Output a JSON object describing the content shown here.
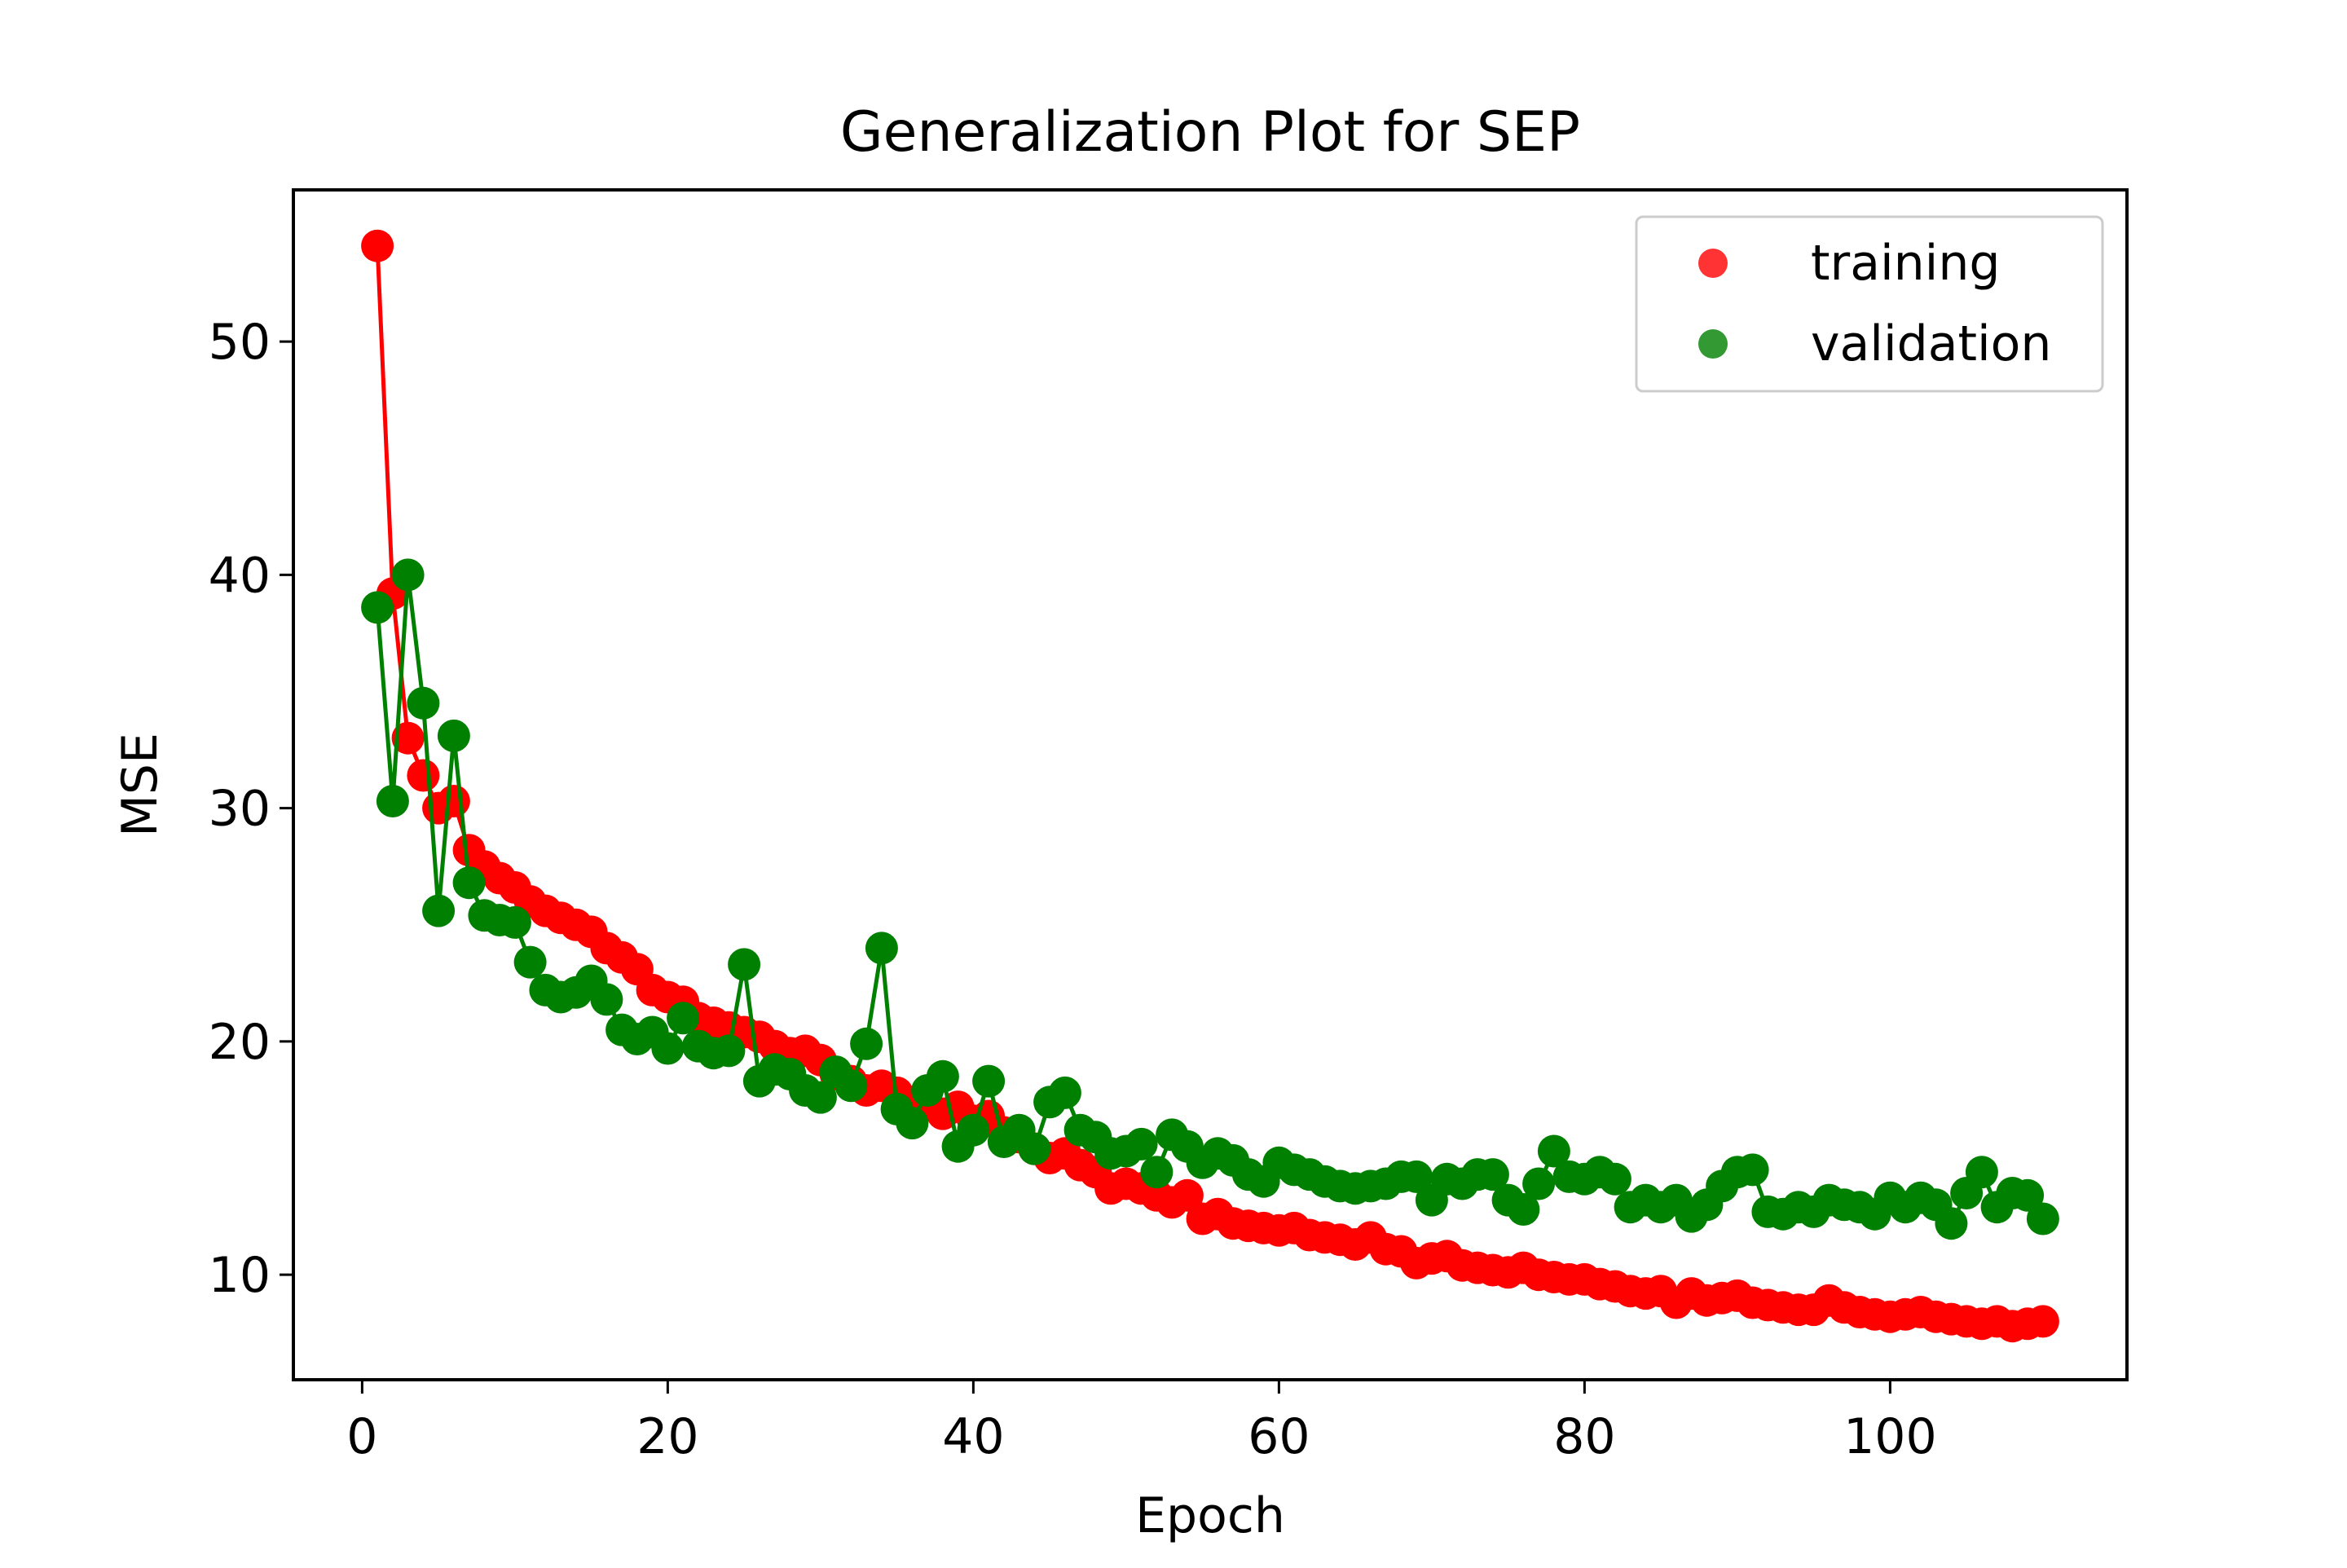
{
  "chart_data": {
    "type": "line",
    "title": "Generalization Plot for SEP",
    "xlabel": "Epoch",
    "ylabel": "MSE",
    "xlim": [
      -4.5,
      115.5
    ],
    "ylim": [
      5.5,
      56.5
    ],
    "xticks": [
      0,
      20,
      40,
      60,
      80,
      100
    ],
    "yticks": [
      10,
      20,
      30,
      40,
      50
    ],
    "grid": false,
    "legend_position": "top-right",
    "markers": "circle",
    "series": [
      {
        "name": "training",
        "color": "#ff0000",
        "x": [
          1,
          2,
          3,
          4,
          5,
          6,
          7,
          8,
          9,
          10,
          11,
          12,
          13,
          14,
          15,
          16,
          17,
          18,
          19,
          20,
          21,
          22,
          23,
          24,
          25,
          26,
          27,
          28,
          29,
          30,
          31,
          32,
          33,
          34,
          35,
          36,
          37,
          38,
          39,
          40,
          41,
          42,
          43,
          44,
          45,
          46,
          47,
          48,
          49,
          50,
          51,
          52,
          53,
          54,
          55,
          56,
          57,
          58,
          59,
          60,
          61,
          62,
          63,
          64,
          65,
          66,
          67,
          68,
          69,
          70,
          71,
          72,
          73,
          74,
          75,
          76,
          77,
          78,
          79,
          80,
          81,
          82,
          83,
          84,
          85,
          86,
          87,
          88,
          89,
          90,
          91,
          92,
          93,
          94,
          95,
          96,
          97,
          98,
          99,
          100,
          101,
          102,
          103,
          104,
          105,
          106,
          107,
          108,
          109,
          110
        ],
        "values": [
          54.1,
          39.2,
          33.0,
          31.4,
          30.0,
          30.3,
          28.2,
          27.5,
          27.0,
          26.6,
          26.0,
          25.6,
          25.3,
          25.0,
          24.7,
          24.0,
          23.6,
          23.1,
          22.2,
          21.9,
          21.7,
          21.0,
          20.8,
          20.6,
          20.4,
          20.2,
          19.8,
          19.5,
          19.6,
          19.2,
          18.6,
          18.3,
          17.9,
          18.1,
          17.8,
          17.4,
          17.3,
          16.9,
          17.2,
          16.6,
          16.8,
          16.1,
          15.9,
          15.4,
          15.0,
          15.2,
          14.7,
          14.4,
          13.7,
          13.9,
          13.7,
          13.4,
          13.1,
          13.4,
          12.4,
          12.6,
          12.2,
          12.1,
          12.0,
          11.9,
          12.0,
          11.7,
          11.6,
          11.5,
          11.3,
          11.6,
          11.1,
          11.0,
          10.5,
          10.7,
          10.8,
          10.4,
          10.3,
          10.2,
          10.1,
          10.3,
          10.0,
          9.9,
          9.8,
          9.8,
          9.6,
          9.5,
          9.3,
          9.2,
          9.3,
          8.8,
          9.2,
          8.9,
          9.0,
          9.1,
          8.8,
          8.7,
          8.6,
          8.5,
          8.5,
          8.9,
          8.6,
          8.4,
          8.3,
          8.2,
          8.3,
          8.4,
          8.2,
          8.1,
          8.0,
          7.9,
          8.0,
          7.8,
          7.9,
          8.0
        ]
      },
      {
        "name": "validation",
        "color": "#008000",
        "x": [
          1,
          2,
          3,
          4,
          5,
          6,
          7,
          8,
          9,
          10,
          11,
          12,
          13,
          14,
          15,
          16,
          17,
          18,
          19,
          20,
          21,
          22,
          23,
          24,
          25,
          26,
          27,
          28,
          29,
          30,
          31,
          32,
          33,
          34,
          35,
          36,
          37,
          38,
          39,
          40,
          41,
          42,
          43,
          44,
          45,
          46,
          47,
          48,
          49,
          50,
          51,
          52,
          53,
          54,
          55,
          56,
          57,
          58,
          59,
          60,
          61,
          62,
          63,
          64,
          65,
          66,
          67,
          68,
          69,
          70,
          71,
          72,
          73,
          74,
          75,
          76,
          77,
          78,
          79,
          80,
          81,
          82,
          83,
          84,
          85,
          86,
          87,
          88,
          89,
          90,
          91,
          92,
          93,
          94,
          95,
          96,
          97,
          98,
          99,
          100,
          101,
          102,
          103,
          104,
          105,
          106,
          107,
          108,
          109,
          110
        ],
        "values": [
          38.6,
          30.3,
          40.0,
          34.5,
          25.6,
          33.1,
          26.8,
          25.4,
          25.2,
          25.1,
          23.4,
          22.2,
          21.9,
          22.1,
          22.6,
          21.8,
          20.5,
          20.1,
          20.4,
          19.7,
          21.0,
          19.8,
          19.5,
          19.6,
          23.3,
          18.3,
          18.8,
          18.6,
          17.9,
          17.6,
          18.7,
          18.1,
          19.9,
          24.0,
          17.1,
          16.5,
          17.9,
          18.5,
          15.5,
          16.2,
          18.3,
          15.7,
          16.2,
          15.4,
          17.4,
          17.8,
          16.2,
          15.9,
          15.2,
          15.3,
          15.6,
          14.4,
          16.0,
          15.5,
          14.8,
          15.2,
          14.9,
          14.3,
          14.0,
          14.8,
          14.5,
          14.3,
          14.0,
          13.8,
          13.7,
          13.8,
          13.9,
          14.2,
          14.2,
          13.2,
          14.1,
          13.9,
          14.3,
          14.3,
          13.2,
          12.8,
          13.9,
          15.3,
          14.2,
          14.1,
          14.4,
          14.1,
          12.9,
          13.2,
          12.9,
          13.2,
          12.5,
          13.0,
          13.8,
          14.4,
          14.5,
          12.7,
          12.6,
          12.9,
          12.7,
          13.2,
          13.0,
          12.9,
          12.6,
          13.3,
          12.9,
          13.3,
          13.0,
          12.2,
          13.5,
          14.4,
          12.9,
          13.5,
          13.4,
          12.4
        ]
      }
    ]
  }
}
